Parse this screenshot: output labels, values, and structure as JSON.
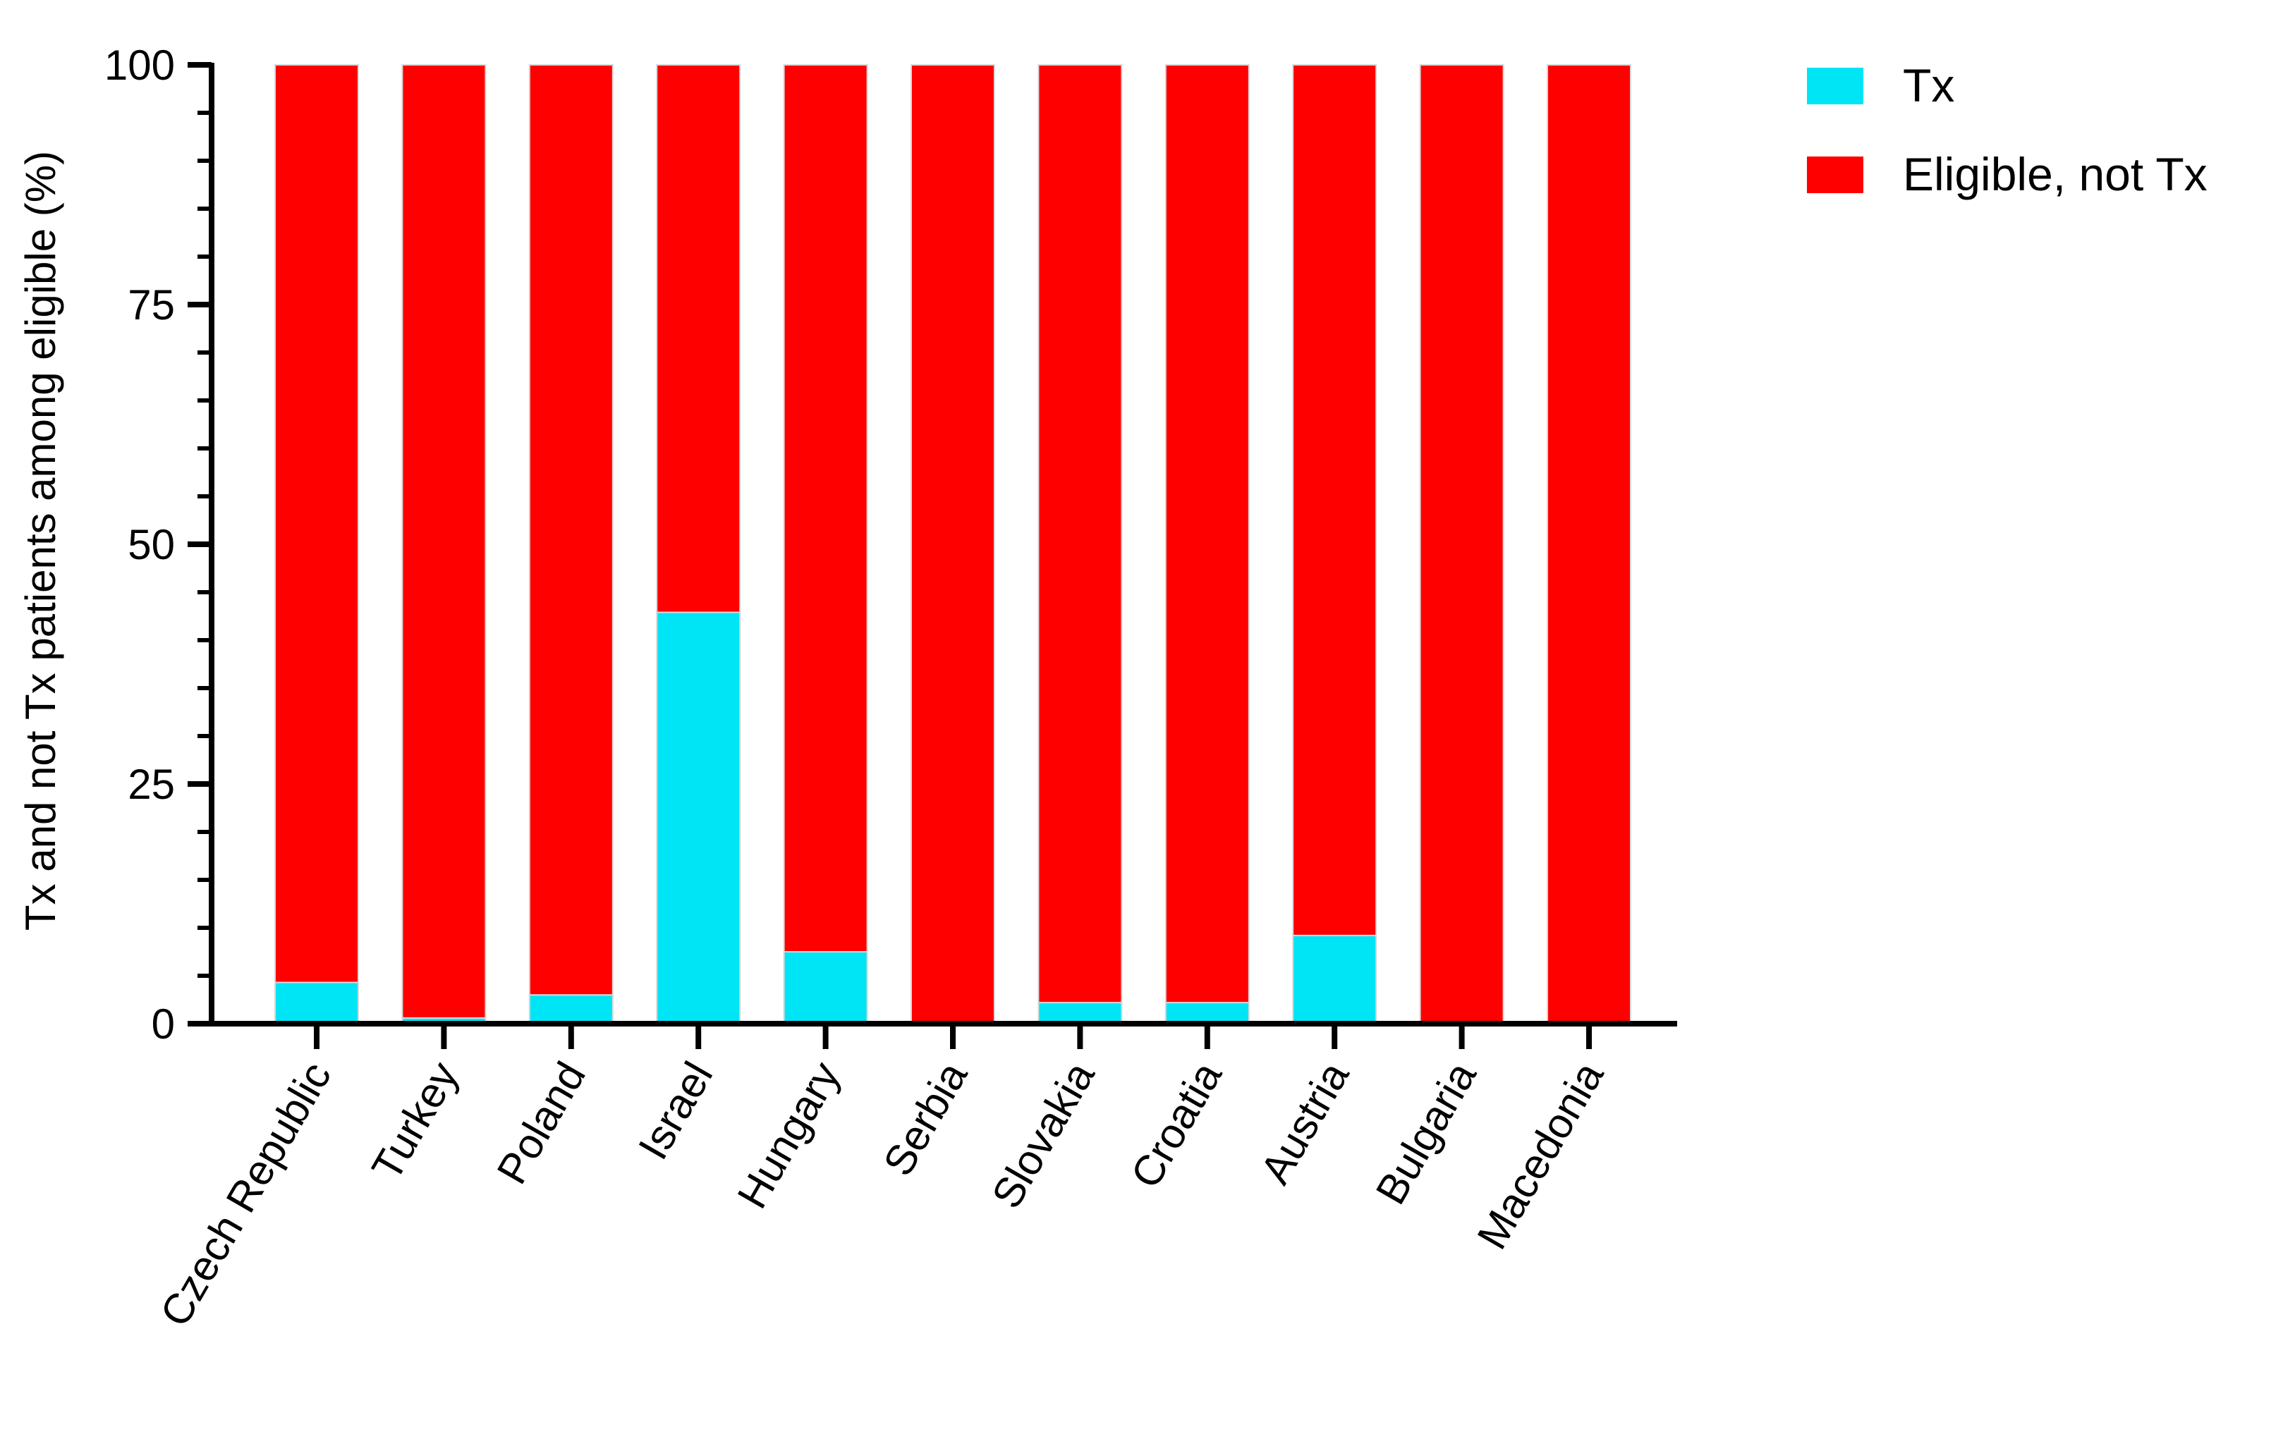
{
  "chart_data": {
    "type": "bar",
    "stacked": true,
    "ylabel": "Tx and not Tx patients among eligible (%)",
    "ylim": [
      0,
      100
    ],
    "yticks": [
      0,
      25,
      50,
      75,
      100
    ],
    "ytick_labels": [
      "0",
      "25",
      "50",
      "75",
      "100"
    ],
    "minor_ticks_per_major": 5,
    "grid": false,
    "legend_position": "top-right",
    "categories": [
      "Czech Republic",
      "Turkey",
      "Poland",
      "Israel",
      "Hungary",
      "Serbia",
      "Slovakia",
      "Croatia",
      "Austria",
      "Bulgaria",
      "Macedonia"
    ],
    "series": [
      {
        "name": "Tx",
        "color": "#00E5F5",
        "values": [
          4.3,
          0.6,
          3.0,
          42.9,
          7.5,
          0,
          2.2,
          2.2,
          9.2,
          0,
          0
        ]
      },
      {
        "name": "Eligible, not Tx",
        "color": "#FF0000",
        "values": [
          95.7,
          99.4,
          97.0,
          57.1,
          92.5,
          100,
          97.8,
          97.8,
          90.8,
          100,
          100
        ]
      }
    ]
  }
}
